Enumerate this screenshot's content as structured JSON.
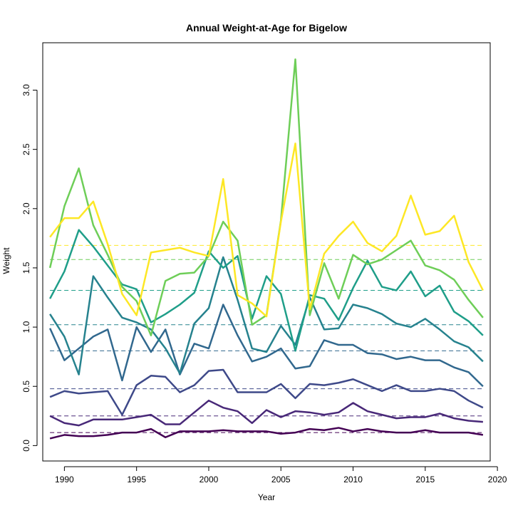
{
  "chart_data": {
    "type": "line",
    "title": "Annual Weight-at-Age for Bigelow",
    "xlabel": "Year",
    "ylabel": "Weight",
    "xlim": [
      1988.5,
      2019.5
    ],
    "ylim": [
      -0.13,
      3.4
    ],
    "xticks": [
      1990,
      1995,
      2000,
      2005,
      2010,
      2015,
      2020
    ],
    "yticks": [
      "0.0",
      "0.5",
      "1.0",
      "1.5",
      "2.0",
      "2.5",
      "3.0"
    ],
    "grid": false,
    "legend": "none",
    "x": [
      1989,
      1990,
      1991,
      1992,
      1993,
      1994,
      1995,
      1996,
      1997,
      1998,
      1999,
      2000,
      2001,
      2002,
      2003,
      2004,
      2005,
      2006,
      2007,
      2008,
      2009,
      2010,
      2011,
      2012,
      2013,
      2014,
      2015,
      2016,
      2017,
      2018,
      2019
    ],
    "series": [
      {
        "color": "#440154",
        "mean": 0.11,
        "values": [
          0.06,
          0.09,
          0.08,
          0.08,
          0.09,
          0.11,
          0.11,
          0.14,
          0.07,
          0.12,
          0.12,
          0.12,
          0.13,
          0.12,
          0.12,
          0.12,
          0.1,
          0.11,
          0.14,
          0.13,
          0.15,
          0.12,
          0.14,
          0.12,
          0.11,
          0.11,
          0.13,
          0.11,
          0.11,
          0.11,
          0.09
        ]
      },
      {
        "color": "#482878",
        "mean": 0.25,
        "values": [
          0.25,
          0.19,
          0.17,
          0.22,
          0.22,
          0.22,
          0.24,
          0.26,
          0.18,
          0.18,
          0.28,
          0.38,
          0.32,
          0.29,
          0.19,
          0.3,
          0.24,
          0.29,
          0.28,
          0.26,
          0.28,
          0.36,
          0.29,
          0.26,
          0.23,
          0.24,
          0.24,
          0.27,
          0.23,
          0.21,
          0.2
        ]
      },
      {
        "color": "#3e4989",
        "mean": 0.48,
        "values": [
          0.41,
          0.46,
          0.44,
          0.45,
          0.46,
          0.26,
          0.51,
          0.59,
          0.58,
          0.45,
          0.51,
          0.63,
          0.64,
          0.45,
          0.45,
          0.45,
          0.52,
          0.4,
          0.52,
          0.51,
          0.53,
          0.56,
          0.51,
          0.46,
          0.51,
          0.46,
          0.46,
          0.48,
          0.46,
          0.38,
          0.32
        ]
      },
      {
        "color": "#31688e",
        "mean": 0.8,
        "values": [
          0.99,
          0.72,
          0.82,
          0.92,
          0.98,
          0.55,
          1.0,
          0.79,
          0.98,
          0.6,
          0.86,
          0.82,
          1.19,
          0.93,
          0.71,
          0.75,
          0.82,
          0.65,
          0.67,
          0.89,
          0.85,
          0.85,
          0.78,
          0.77,
          0.73,
          0.75,
          0.72,
          0.72,
          0.66,
          0.62,
          0.5
        ]
      },
      {
        "color": "#26828e",
        "mean": 1.02,
        "values": [
          1.11,
          0.92,
          0.6,
          1.43,
          1.25,
          1.08,
          1.04,
          0.98,
          0.82,
          0.61,
          1.03,
          1.16,
          1.59,
          1.23,
          0.82,
          0.79,
          1.01,
          0.85,
          1.25,
          0.98,
          0.99,
          1.19,
          1.16,
          1.11,
          1.03,
          1.0,
          1.07,
          0.98,
          0.88,
          0.83,
          0.71
        ]
      },
      {
        "color": "#1f9e89",
        "mean": 1.31,
        "values": [
          1.24,
          1.47,
          1.82,
          1.68,
          1.52,
          1.36,
          1.32,
          1.04,
          1.11,
          1.19,
          1.29,
          1.64,
          1.5,
          1.6,
          1.07,
          1.43,
          1.28,
          0.8,
          1.27,
          1.24,
          1.06,
          1.33,
          1.56,
          1.34,
          1.31,
          1.47,
          1.26,
          1.35,
          1.13,
          1.05,
          0.93
        ]
      },
      {
        "color": "#6ece58",
        "mean": 1.57,
        "values": [
          1.5,
          2.02,
          2.34,
          1.86,
          1.61,
          1.34,
          1.22,
          0.93,
          1.39,
          1.45,
          1.46,
          1.6,
          1.89,
          1.73,
          1.02,
          1.1,
          1.9,
          3.26,
          1.1,
          1.54,
          1.24,
          1.61,
          1.53,
          1.57,
          1.65,
          1.73,
          1.52,
          1.48,
          1.4,
          1.23,
          1.08
        ]
      },
      {
        "color": "#fde725",
        "mean": 1.69,
        "values": [
          1.76,
          1.92,
          1.92,
          2.06,
          1.7,
          1.28,
          1.1,
          1.63,
          1.65,
          1.67,
          1.63,
          1.6,
          2.25,
          1.27,
          1.2,
          1.09,
          1.89,
          2.55,
          1.15,
          1.62,
          1.77,
          1.89,
          1.71,
          1.64,
          1.77,
          2.11,
          1.78,
          1.81,
          1.94,
          1.55,
          1.31
        ]
      }
    ]
  }
}
